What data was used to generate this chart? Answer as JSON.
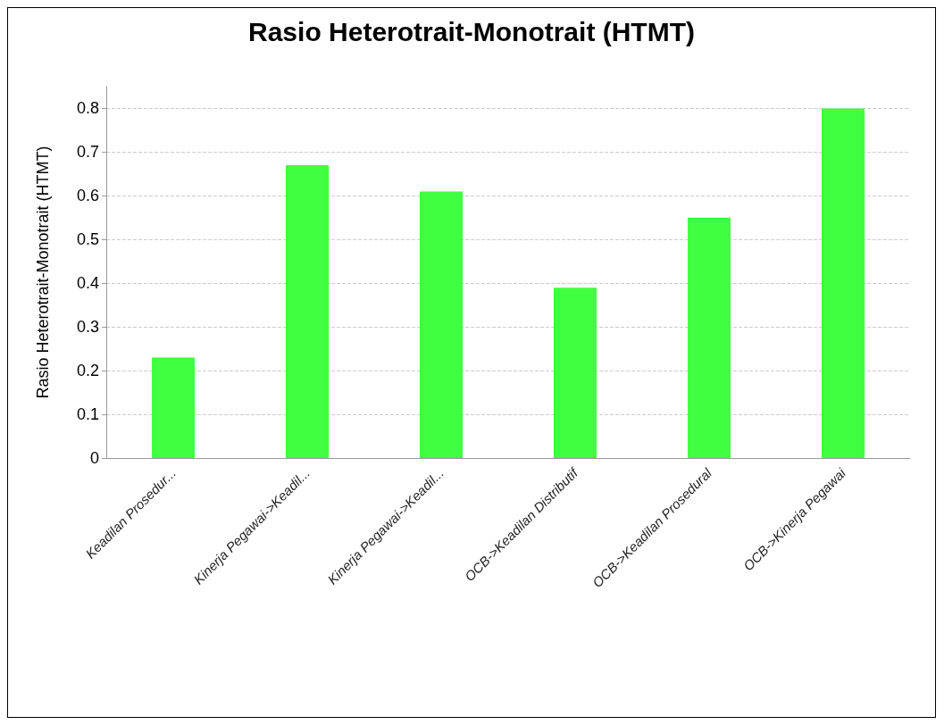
{
  "chart_data": {
    "type": "bar",
    "title": "Rasio Heterotrait-Monotrait (HTMT)",
    "ylabel": "Rasio Heterotrait-Monotrait (HTMT)",
    "categories": [
      "Keadilan Prosedur...",
      "Kinerja Pegawai->Keadil...",
      "Kinerja Pegawai->Keadil...",
      "OCB->Keadilan Distributif",
      "OCB->Keadilan Prosedural",
      "OCB->Kinerja Pegawai"
    ],
    "values": [
      0.23,
      0.67,
      0.61,
      0.39,
      0.55,
      0.8
    ],
    "color": "#40ff40",
    "ylim": [
      0,
      0.85
    ],
    "yticks": [
      0,
      0.1,
      0.2,
      0.3,
      0.4,
      0.5,
      0.6,
      0.7,
      0.8
    ],
    "grid": "y"
  }
}
